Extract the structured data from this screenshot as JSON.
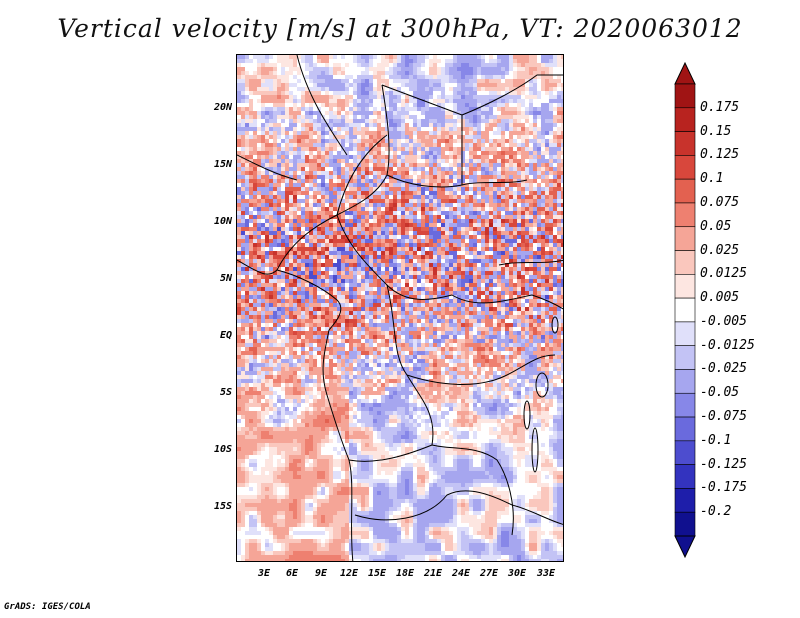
{
  "title": "Vertical velocity [m/s] at 300hPa, VT: 2020063012",
  "footer": "GrADS: IGES/COLA",
  "lat_labels": [
    "20N",
    "15N",
    "10N",
    "5N",
    "EQ",
    "5S",
    "10S",
    "15S"
  ],
  "lon_labels": [
    "3E",
    "6E",
    "9E",
    "12E",
    "15E",
    "18E",
    "21E",
    "24E",
    "27E",
    "30E",
    "33E"
  ],
  "colorbar": {
    "labels": [
      "0.175",
      "0.15",
      "0.125",
      "0.1",
      "0.075",
      "0.05",
      "0.025",
      "0.0125",
      "0.005",
      "-0.005",
      "-0.0125",
      "-0.025",
      "-0.05",
      "-0.075",
      "-0.1",
      "-0.125",
      "-0.175",
      "-0.2"
    ],
    "colors": [
      "#a01414",
      "#b8231f",
      "#c8332c",
      "#d8473c",
      "#e36150",
      "#ee8070",
      "#f5a597",
      "#fac7bd",
      "#fde6e1",
      "#ffffff",
      "#e0e0fa",
      "#c3c3f5",
      "#a6a6ef",
      "#8787e8",
      "#6a6add",
      "#4d4dcf",
      "#3333bf",
      "#1e1eaa",
      "#10108f"
    ]
  }
}
